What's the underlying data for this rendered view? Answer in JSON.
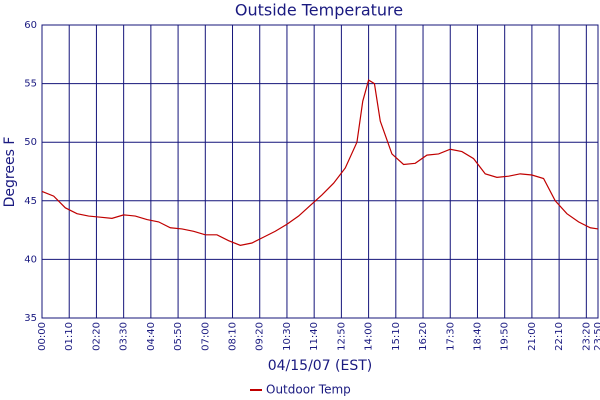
{
  "chart_data": {
    "type": "line",
    "title": "Outside Temperature",
    "y_label": "Degrees F",
    "x_label": "04/15/07 (EST)",
    "x": [
      0,
      30,
      60,
      90,
      120,
      150,
      180,
      210,
      240,
      270,
      300,
      330,
      360,
      390,
      420,
      450,
      480,
      510,
      540,
      570,
      600,
      630,
      660,
      690,
      720,
      750,
      780,
      810,
      825,
      840,
      855,
      870,
      900,
      930,
      960,
      990,
      1020,
      1050,
      1080,
      1110,
      1140,
      1170,
      1200,
      1230,
      1260,
      1290,
      1320,
      1350,
      1380,
      1410,
      1430
    ],
    "series": [
      {
        "name": "Outdoor Temp",
        "color": "#c00000",
        "values": [
          45.8,
          45.4,
          44.4,
          43.9,
          43.7,
          43.6,
          43.5,
          43.8,
          43.7,
          43.4,
          43.2,
          42.7,
          42.6,
          42.4,
          42.1,
          42.1,
          41.6,
          41.2,
          41.4,
          41.9,
          42.4,
          43.0,
          43.7,
          44.6,
          45.5,
          46.5,
          47.8,
          50.0,
          53.5,
          55.3,
          55.0,
          51.8,
          49.0,
          48.1,
          48.2,
          48.9,
          49.0,
          49.4,
          49.2,
          48.6,
          47.3,
          47.0,
          47.1,
          47.3,
          47.2,
          46.9,
          45.0,
          43.9,
          43.2,
          42.7,
          42.6
        ]
      }
    ],
    "xlim": [
      0,
      1430
    ],
    "xticks": [
      {
        "value": 0,
        "label": "00:00"
      },
      {
        "value": 70,
        "label": "01:10"
      },
      {
        "value": 140,
        "label": "02:20"
      },
      {
        "value": 210,
        "label": "03:30"
      },
      {
        "value": 280,
        "label": "04:40"
      },
      {
        "value": 350,
        "label": "05:50"
      },
      {
        "value": 420,
        "label": "07:00"
      },
      {
        "value": 490,
        "label": "08:10"
      },
      {
        "value": 560,
        "label": "09:20"
      },
      {
        "value": 630,
        "label": "10:30"
      },
      {
        "value": 700,
        "label": "11:40"
      },
      {
        "value": 770,
        "label": "12:50"
      },
      {
        "value": 840,
        "label": "14:00"
      },
      {
        "value": 910,
        "label": "15:10"
      },
      {
        "value": 980,
        "label": "16:20"
      },
      {
        "value": 1050,
        "label": "17:30"
      },
      {
        "value": 1120,
        "label": "18:40"
      },
      {
        "value": 1190,
        "label": "19:50"
      },
      {
        "value": 1260,
        "label": "21:00"
      },
      {
        "value": 1330,
        "label": "22:10"
      },
      {
        "value": 1400,
        "label": "23:20"
      },
      {
        "value": 1430,
        "label": "23:50"
      }
    ],
    "ylim": [
      35,
      60
    ],
    "yticks": [
      35,
      40,
      45,
      50,
      55,
      60
    ],
    "grid": true
  }
}
